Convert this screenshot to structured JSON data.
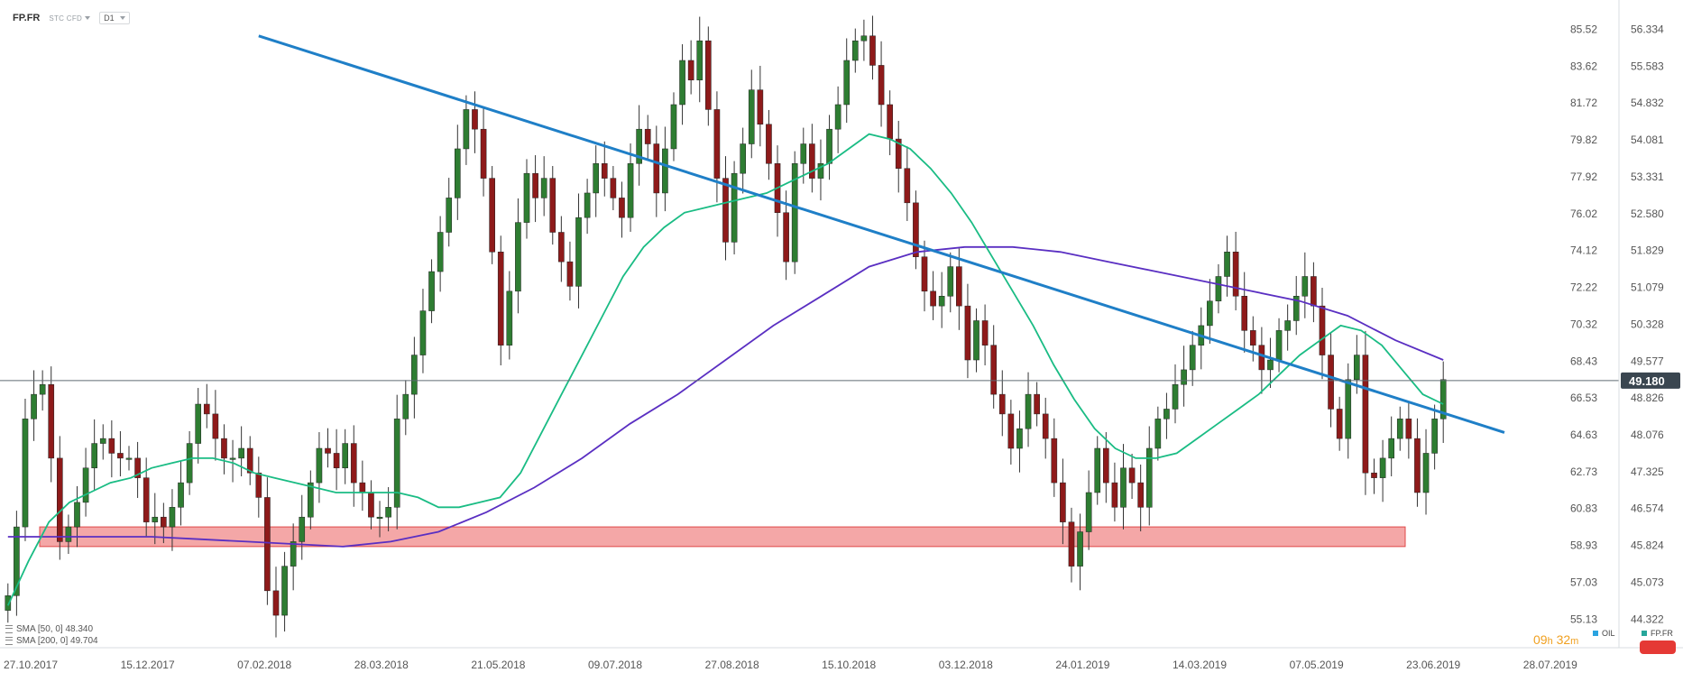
{
  "header": {
    "symbol": "FP.FR",
    "type": "STC CFD",
    "timeframe": "D1"
  },
  "indicators": [
    {
      "label": "SMA [50, 0] 48.340"
    },
    {
      "label": "SMA [200, 0] 49.704"
    }
  ],
  "timer": {
    "hours": "09",
    "h_unit": "h",
    "minutes": "32",
    "m_unit": "m"
  },
  "instruments": [
    {
      "name": "OIL",
      "color": "#2aa3e0"
    },
    {
      "name": "FP.FR",
      "color": "#26a69a"
    }
  ],
  "chart_data": {
    "type": "candlestick",
    "x_ticks": [
      "27.10.2017",
      "15.12.2017",
      "07.02.2018",
      "28.03.2018",
      "21.05.2018",
      "09.07.2018",
      "27.08.2018",
      "15.10.2018",
      "03.12.2018",
      "24.01.2019",
      "14.03.2019",
      "07.05.2019",
      "23.06.2019",
      "28.07.2019"
    ],
    "y_ticks_oil": [
      85.52,
      83.62,
      81.72,
      79.82,
      77.92,
      76.02,
      74.12,
      72.22,
      70.32,
      68.43,
      66.53,
      64.63,
      62.73,
      60.83,
      58.93,
      57.03,
      55.13
    ],
    "y_ticks_fp": [
      56.334,
      55.583,
      54.832,
      54.081,
      53.331,
      52.58,
      51.829,
      51.079,
      50.328,
      49.577,
      48.826,
      48.076,
      47.325,
      46.574,
      45.824,
      45.073,
      44.322
    ],
    "current_price": 49.18,
    "current_price_label": "49.180",
    "price_range_fp": [
      43.85,
      56.6
    ],
    "closes_fp": [
      44.8,
      46.2,
      48.4,
      48.9,
      49.1,
      47.6,
      45.9,
      46.2,
      46.7,
      47.4,
      47.9,
      48.0,
      47.7,
      47.6,
      47.6,
      47.2,
      46.3,
      46.4,
      46.2,
      46.6,
      47.1,
      47.9,
      48.7,
      48.5,
      48.0,
      47.6,
      47.6,
      47.8,
      47.3,
      46.8,
      44.9,
      44.4,
      45.4,
      45.9,
      46.4,
      47.1,
      47.8,
      47.7,
      47.4,
      47.9,
      47.1,
      46.9,
      46.4,
      46.4,
      46.6,
      48.4,
      48.9,
      49.7,
      50.6,
      51.4,
      52.2,
      52.9,
      53.9,
      54.7,
      54.3,
      53.3,
      51.8,
      49.9,
      51.0,
      52.4,
      53.4,
      52.9,
      53.3,
      52.2,
      51.6,
      51.1,
      52.5,
      53.0,
      53.6,
      53.3,
      52.9,
      52.5,
      53.6,
      54.3,
      54.0,
      53.0,
      53.9,
      54.8,
      55.7,
      55.3,
      56.1,
      54.7,
      53.3,
      52.0,
      53.4,
      54.0,
      55.1,
      54.4,
      53.6,
      52.6,
      51.6,
      53.6,
      54.0,
      53.3,
      53.6,
      54.3,
      54.8,
      55.7,
      56.1,
      56.2,
      55.6,
      54.8,
      54.1,
      53.5,
      52.8,
      51.7,
      51.0,
      50.7,
      50.9,
      51.5,
      50.7,
      49.6,
      50.4,
      49.9,
      48.9,
      48.5,
      47.8,
      48.2,
      48.9,
      48.5,
      48.0,
      47.1,
      46.3,
      45.4,
      46.1,
      46.9,
      47.8,
      47.1,
      46.6,
      47.4,
      47.1,
      46.6,
      47.8,
      48.4,
      48.6,
      49.1,
      49.4,
      49.9,
      50.3,
      50.8,
      51.3,
      51.8,
      50.9,
      50.2,
      49.9,
      49.4,
      49.6,
      50.2,
      50.4,
      50.9,
      51.3,
      50.7,
      49.7,
      48.6,
      48.0,
      49.2,
      49.7,
      47.3,
      47.2,
      47.6,
      48.0,
      48.4,
      48.0,
      46.9,
      47.7,
      48.4,
      49.2
    ],
    "sma50_fp": [
      44.6,
      45.5,
      46.3,
      46.7,
      46.9,
      47.1,
      47.2,
      47.4,
      47.5,
      47.6,
      47.6,
      47.5,
      47.3,
      47.2,
      47.1,
      47.0,
      46.9,
      46.9,
      46.9,
      46.9,
      46.8,
      46.6,
      46.6,
      46.7,
      46.8,
      47.3,
      48.1,
      48.9,
      49.7,
      50.5,
      51.3,
      51.9,
      52.3,
      52.6,
      52.7,
      52.8,
      52.9,
      53.0,
      53.2,
      53.4,
      53.6,
      53.9,
      54.2,
      54.1,
      53.9,
      53.5,
      53.0,
      52.4,
      51.7,
      51.0,
      50.3,
      49.5,
      48.8,
      48.2,
      47.8,
      47.6,
      47.6,
      47.7,
      48.0,
      48.3,
      48.6,
      48.9,
      49.3,
      49.7,
      50.0,
      50.3,
      50.2,
      49.9,
      49.4,
      48.9,
      48.7
    ],
    "sma200_fp": [
      46.0,
      46.0,
      46.0,
      46.0,
      45.95,
      45.9,
      45.85,
      45.8,
      45.9,
      46.1,
      46.5,
      47.0,
      47.6,
      48.3,
      48.9,
      49.6,
      50.3,
      50.9,
      51.5,
      51.8,
      51.9,
      51.9,
      51.8,
      51.6,
      51.4,
      51.2,
      51.0,
      50.8,
      50.5,
      50.0,
      49.6
    ],
    "trendline_fp": [
      [
        29,
        56.2
      ],
      [
        161,
        48.8
      ]
    ],
    "support_zone_fp": [
      45.8,
      46.2
    ]
  }
}
